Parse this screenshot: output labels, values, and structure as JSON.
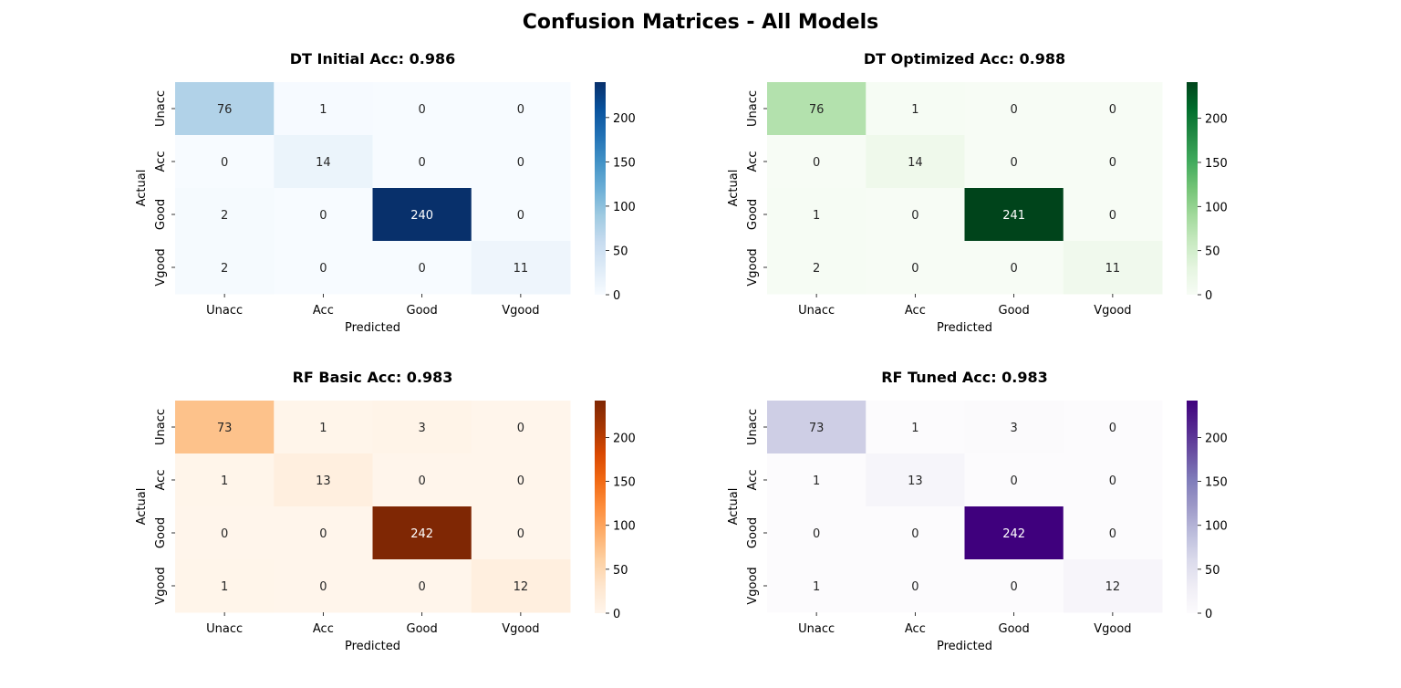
{
  "figure": {
    "title": "Confusion Matrices - All Models"
  },
  "chart_data": [
    {
      "type": "heatmap",
      "title": "DT Initial Acc: 0.986",
      "xlabel": "Predicted",
      "ylabel": "Actual",
      "x_categories": [
        "Unacc",
        "Acc",
        "Good",
        "Vgood"
      ],
      "y_categories": [
        "Unacc",
        "Acc",
        "Good",
        "Vgood"
      ],
      "values": [
        [
          76,
          1,
          0,
          0
        ],
        [
          0,
          14,
          0,
          0
        ],
        [
          2,
          0,
          240,
          0
        ],
        [
          2,
          0,
          0,
          11
        ]
      ],
      "colormap": "Blues",
      "colorscale": [
        "#f7fbff",
        "#deebf7",
        "#c6dbef",
        "#9ecae1",
        "#6baed6",
        "#4292c6",
        "#2171b5",
        "#08519c",
        "#08306b"
      ],
      "value_range": [
        0,
        240
      ],
      "colorbar_ticks": [
        "0",
        "50",
        "100",
        "150",
        "200"
      ]
    },
    {
      "type": "heatmap",
      "title": "DT Optimized Acc: 0.988",
      "xlabel": "Predicted",
      "ylabel": "Actual",
      "x_categories": [
        "Unacc",
        "Acc",
        "Good",
        "Vgood"
      ],
      "y_categories": [
        "Unacc",
        "Acc",
        "Good",
        "Vgood"
      ],
      "values": [
        [
          76,
          1,
          0,
          0
        ],
        [
          0,
          14,
          0,
          0
        ],
        [
          1,
          0,
          241,
          0
        ],
        [
          2,
          0,
          0,
          11
        ]
      ],
      "colormap": "Greens",
      "colorscale": [
        "#f7fcf5",
        "#e5f5e0",
        "#c7e9c0",
        "#a1d99b",
        "#74c476",
        "#41ab5d",
        "#238b45",
        "#006d2c",
        "#00441b"
      ],
      "value_range": [
        0,
        241
      ],
      "colorbar_ticks": [
        "0",
        "50",
        "100",
        "150",
        "200"
      ]
    },
    {
      "type": "heatmap",
      "title": "RF Basic Acc: 0.983",
      "xlabel": "Predicted",
      "ylabel": "Actual",
      "x_categories": [
        "Unacc",
        "Acc",
        "Good",
        "Vgood"
      ],
      "y_categories": [
        "Unacc",
        "Acc",
        "Good",
        "Vgood"
      ],
      "values": [
        [
          73,
          1,
          3,
          0
        ],
        [
          1,
          13,
          0,
          0
        ],
        [
          0,
          0,
          242,
          0
        ],
        [
          1,
          0,
          0,
          12
        ]
      ],
      "colormap": "Oranges",
      "colorscale": [
        "#fff5eb",
        "#fee6ce",
        "#fdd0a2",
        "#fdae6b",
        "#fd8d3c",
        "#f16913",
        "#d94801",
        "#a63603",
        "#7f2704"
      ],
      "value_range": [
        0,
        242
      ],
      "colorbar_ticks": [
        "0",
        "50",
        "100",
        "150",
        "200"
      ]
    },
    {
      "type": "heatmap",
      "title": "RF Tuned Acc: 0.983",
      "xlabel": "Predicted",
      "ylabel": "Actual",
      "x_categories": [
        "Unacc",
        "Acc",
        "Good",
        "Vgood"
      ],
      "y_categories": [
        "Unacc",
        "Acc",
        "Good",
        "Vgood"
      ],
      "values": [
        [
          73,
          1,
          3,
          0
        ],
        [
          1,
          13,
          0,
          0
        ],
        [
          0,
          0,
          242,
          0
        ],
        [
          1,
          0,
          0,
          12
        ]
      ],
      "colormap": "Purples",
      "colorscale": [
        "#fcfbfd",
        "#efedf5",
        "#dadaeb",
        "#bcbddc",
        "#9e9ac8",
        "#807dba",
        "#6a51a3",
        "#54278f",
        "#3f007d"
      ],
      "value_range": [
        0,
        242
      ],
      "colorbar_ticks": [
        "0",
        "50",
        "100",
        "150",
        "200"
      ]
    }
  ]
}
